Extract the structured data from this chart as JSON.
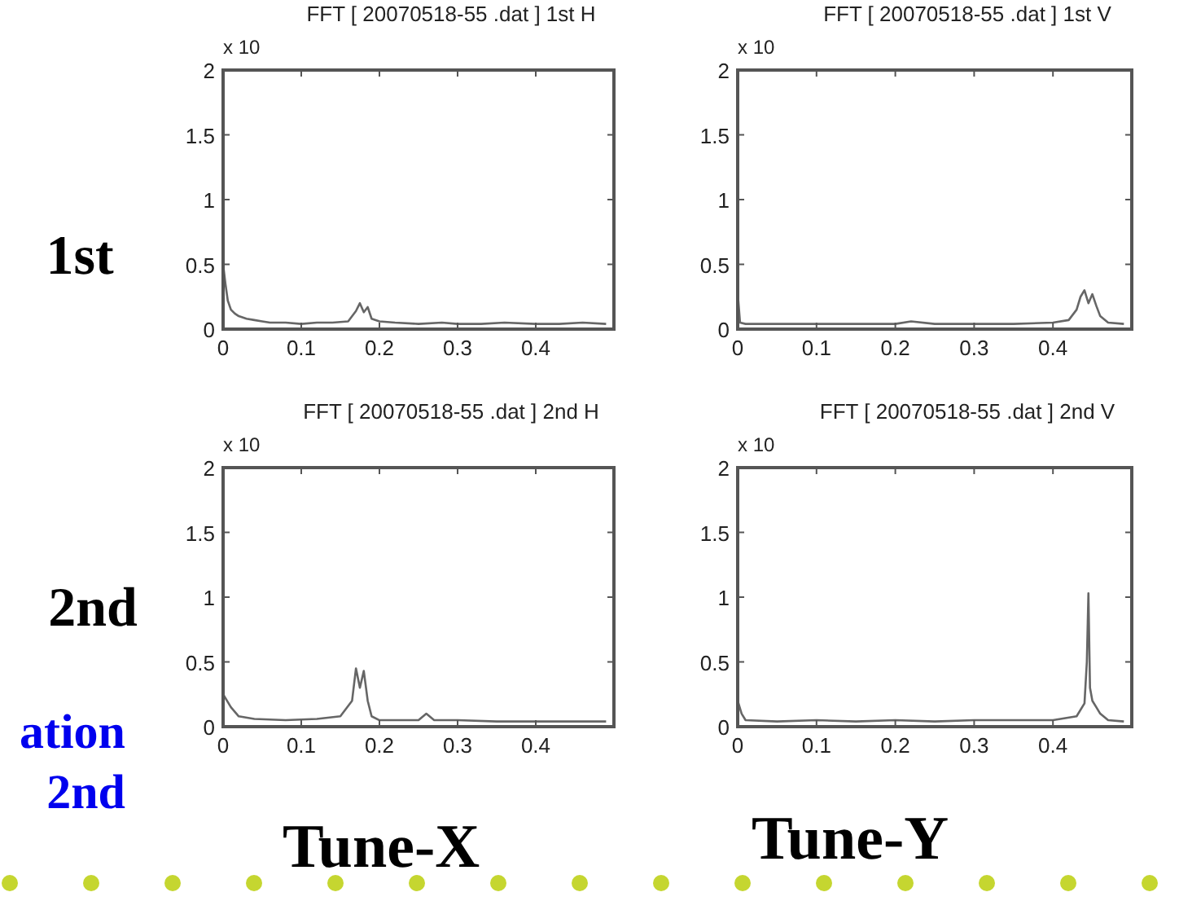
{
  "chart_data": [
    {
      "type": "line",
      "title": "FFT [ 20070518-55 .dat ] 1st H",
      "xlim": [
        0,
        0.5
      ],
      "xticks": [
        0,
        0.1,
        0.2,
        0.3,
        0.4
      ],
      "ylim": [
        0,
        2
      ],
      "yticks": [
        0,
        0.5,
        1,
        1.5,
        2
      ],
      "grid": false,
      "annotations": [
        "x 10",
        "1st"
      ],
      "series": [
        {
          "color": "#666666",
          "x": [
            0,
            0.003,
            0.006,
            0.01,
            0.015,
            0.02,
            0.03,
            0.04,
            0.05,
            0.06,
            0.08,
            0.1,
            0.12,
            0.14,
            0.16,
            0.17,
            0.175,
            0.18,
            0.185,
            0.19,
            0.2,
            0.22,
            0.25,
            0.28,
            0.3,
            0.33,
            0.36,
            0.4,
            0.43,
            0.46,
            0.49
          ],
          "values": [
            0.5,
            0.35,
            0.22,
            0.15,
            0.12,
            0.1,
            0.08,
            0.07,
            0.06,
            0.05,
            0.05,
            0.04,
            0.05,
            0.05,
            0.06,
            0.14,
            0.2,
            0.13,
            0.17,
            0.08,
            0.06,
            0.05,
            0.04,
            0.05,
            0.04,
            0.04,
            0.05,
            0.04,
            0.04,
            0.05,
            0.04
          ]
        }
      ]
    },
    {
      "type": "line",
      "title": "FFT [ 20070518-55 .dat ] 1st V",
      "xlim": [
        0,
        0.5
      ],
      "xticks": [
        0,
        0.1,
        0.2,
        0.3,
        0.4
      ],
      "ylim": [
        0,
        2
      ],
      "yticks": [
        0,
        0.5,
        1,
        1.5,
        2
      ],
      "grid": false,
      "annotations": [
        "x 10"
      ],
      "series": [
        {
          "color": "#666666",
          "x": [
            0,
            0.003,
            0.01,
            0.05,
            0.1,
            0.15,
            0.2,
            0.22,
            0.25,
            0.3,
            0.35,
            0.4,
            0.42,
            0.43,
            0.435,
            0.44,
            0.445,
            0.45,
            0.455,
            0.46,
            0.47,
            0.49
          ],
          "values": [
            0.28,
            0.05,
            0.04,
            0.04,
            0.04,
            0.04,
            0.04,
            0.06,
            0.04,
            0.04,
            0.04,
            0.05,
            0.07,
            0.15,
            0.25,
            0.3,
            0.2,
            0.27,
            0.18,
            0.1,
            0.05,
            0.04
          ]
        }
      ]
    },
    {
      "type": "line",
      "title": "FFT [ 20070518-55 .dat ] 2nd H",
      "xlim": [
        0,
        0.5
      ],
      "xticks": [
        0,
        0.1,
        0.2,
        0.3,
        0.4
      ],
      "ylim": [
        0,
        2
      ],
      "yticks": [
        0,
        0.5,
        1,
        1.5,
        2
      ],
      "grid": false,
      "annotations": [
        "x 10",
        "2nd",
        "ation",
        "2nd",
        "Tune-X"
      ],
      "series": [
        {
          "color": "#666666",
          "x": [
            0,
            0.005,
            0.01,
            0.02,
            0.04,
            0.08,
            0.12,
            0.15,
            0.165,
            0.17,
            0.175,
            0.18,
            0.185,
            0.19,
            0.2,
            0.22,
            0.25,
            0.26,
            0.27,
            0.3,
            0.35,
            0.4,
            0.45,
            0.49
          ],
          "values": [
            0.25,
            0.2,
            0.15,
            0.08,
            0.06,
            0.05,
            0.06,
            0.08,
            0.2,
            0.45,
            0.3,
            0.43,
            0.2,
            0.08,
            0.05,
            0.05,
            0.05,
            0.1,
            0.05,
            0.05,
            0.04,
            0.04,
            0.04,
            0.04
          ]
        }
      ]
    },
    {
      "type": "line",
      "title": "FFT [ 20070518-55 .dat ] 2nd V",
      "xlim": [
        0,
        0.5
      ],
      "xticks": [
        0,
        0.1,
        0.2,
        0.3,
        0.4
      ],
      "ylim": [
        0,
        2
      ],
      "yticks": [
        0,
        0.5,
        1,
        1.5,
        2
      ],
      "grid": false,
      "annotations": [
        "x 10",
        "Tune-Y"
      ],
      "series": [
        {
          "color": "#666666",
          "x": [
            0,
            0.005,
            0.01,
            0.05,
            0.1,
            0.15,
            0.2,
            0.25,
            0.3,
            0.35,
            0.4,
            0.43,
            0.44,
            0.443,
            0.445,
            0.447,
            0.45,
            0.455,
            0.46,
            0.47,
            0.49
          ],
          "values": [
            0.2,
            0.1,
            0.05,
            0.04,
            0.05,
            0.04,
            0.05,
            0.04,
            0.05,
            0.05,
            0.05,
            0.08,
            0.18,
            0.5,
            1.03,
            0.3,
            0.2,
            0.15,
            0.1,
            0.05,
            0.04
          ]
        }
      ]
    }
  ]
}
